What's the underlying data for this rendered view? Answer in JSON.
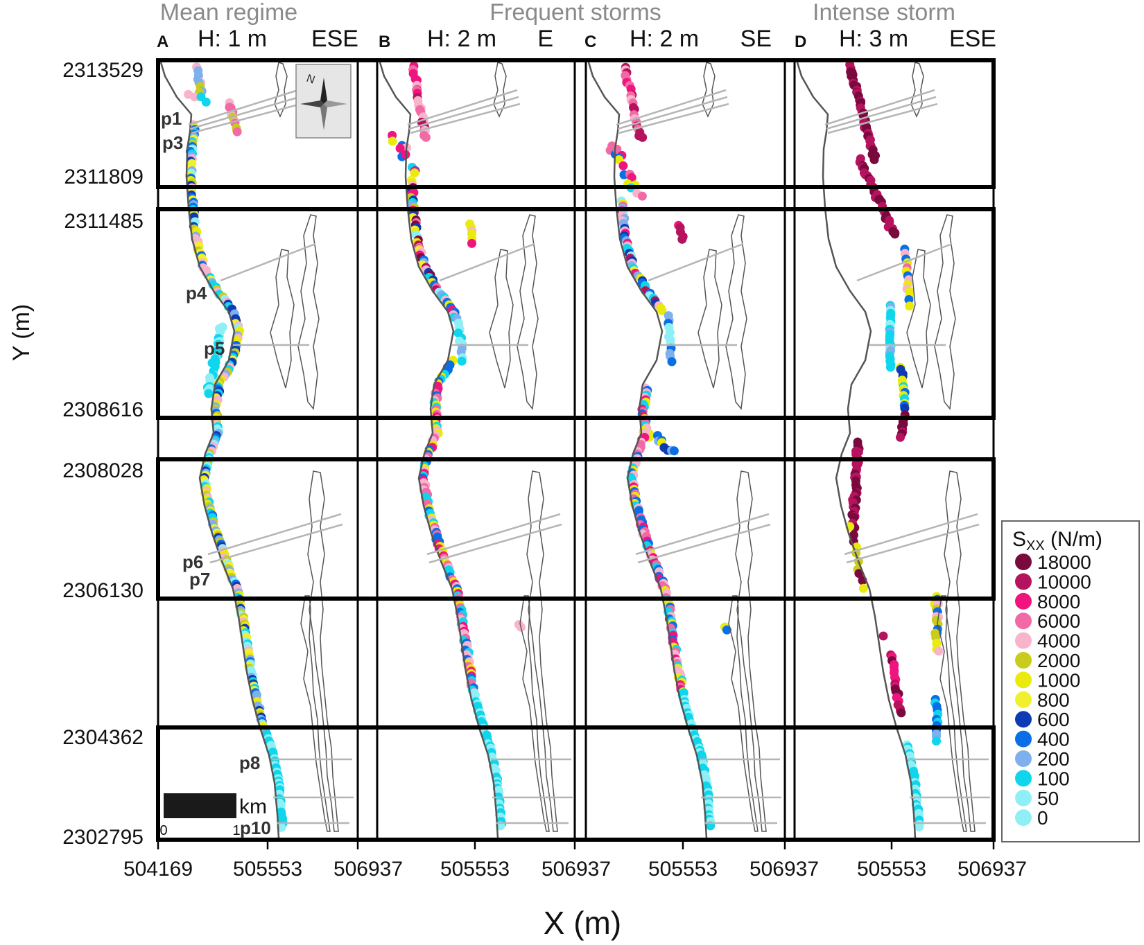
{
  "chart_data": {
    "type": "scatter",
    "xlabel": "X (m)",
    "ylabel": "Y (m)",
    "x_ticks": [
      "504169",
      "505553",
      "506937",
      "505553",
      "506937",
      "505553",
      "506937",
      "505553",
      "506937"
    ],
    "y_ticks": [
      "2313529",
      "2311809",
      "2311485",
      "2308616",
      "2308028",
      "2306130",
      "2304362",
      "2302795"
    ],
    "scenario_titles": [
      {
        "name": "Mean regime",
        "panels": [
          "A"
        ]
      },
      {
        "name": "Frequent storms",
        "panels": [
          "B",
          "C"
        ]
      },
      {
        "name": "Intense storm",
        "panels": [
          "D"
        ]
      }
    ],
    "panels": [
      {
        "id": "A",
        "height": "H: 1 m",
        "direction": "ESE"
      },
      {
        "id": "B",
        "height": "H: 2 m",
        "direction": "E"
      },
      {
        "id": "C",
        "height": "H: 2 m",
        "direction": "SE"
      },
      {
        "id": "D",
        "height": "H: 3 m",
        "direction": "ESE"
      }
    ],
    "profiles": [
      "p1",
      "p3",
      "p4",
      "p5",
      "p6",
      "p7",
      "p8",
      "p10"
    ],
    "scale_bar": {
      "unit": "km",
      "start": "0",
      "end": "1"
    },
    "legend": {
      "title_main": "S",
      "title_sub": "XX",
      "title_unit": " (N/m)",
      "position": "right",
      "entries": [
        {
          "label": "18000",
          "color": "#7a0a3e"
        },
        {
          "label": "10000",
          "color": "#b5135e"
        },
        {
          "label": "8000",
          "color": "#f0147f"
        },
        {
          "label": "6000",
          "color": "#f26aa5"
        },
        {
          "label": "4000",
          "color": "#f8b4cc"
        },
        {
          "label": "2000",
          "color": "#c9cc1d"
        },
        {
          "label": "1000",
          "color": "#eaea0c"
        },
        {
          "label": "800",
          "color": "#f0f02e"
        },
        {
          "label": "600",
          "color": "#0c3bb4"
        },
        {
          "label": "400",
          "color": "#0a6fe6"
        },
        {
          "label": "200",
          "color": "#7fb0ee"
        },
        {
          "label": "100",
          "color": "#0fd6ec"
        },
        {
          "label": "50",
          "color": "#8ef0f6"
        },
        {
          "label": "0",
          "color": "#8ef0f6"
        }
      ]
    }
  },
  "colors": {
    "coast": "#555555",
    "profile_line": "#b5b5b5",
    "frame": "#000000",
    "title_gray": "#8a8a8a"
  }
}
